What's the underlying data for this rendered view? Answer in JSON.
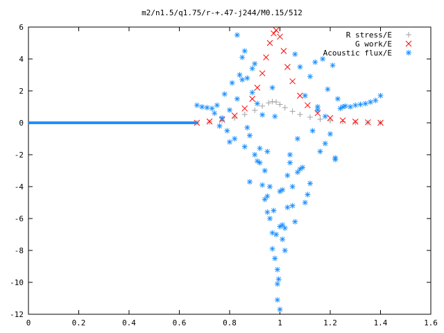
{
  "chart_data": {
    "type": "scatter",
    "title": "m2/n1.5/q1.75/r-+.47-j244/M0.15/512",
    "xlim": [
      0,
      1.6
    ],
    "ylim": [
      -12,
      6
    ],
    "x_ticks": [
      "0",
      "0.2",
      "0.4",
      "0.6",
      "0.8",
      "1",
      "1.2",
      "1.4",
      "1.6"
    ],
    "y_ticks": [
      "6",
      "4",
      "2",
      "0",
      "-2",
      "-4",
      "-6",
      "-8",
      "-10",
      "-12"
    ],
    "x_tick_values": [
      0,
      0.2,
      0.4,
      0.6,
      0.8,
      1.0,
      1.2,
      1.4,
      1.6
    ],
    "y_tick_values": [
      6,
      4,
      2,
      0,
      -2,
      -4,
      -6,
      -8,
      -10,
      -12
    ],
    "legend_position": "top-right",
    "series": [
      {
        "name": "R stress/E",
        "marker": "plus",
        "color": "#a0a0a0",
        "x": [
          0.67,
          0.72,
          0.77,
          0.82,
          0.86,
          0.9,
          0.93,
          0.955,
          0.97,
          0.985,
          1.0,
          1.02,
          1.05,
          1.08,
          1.12,
          1.16,
          1.2,
          1.25,
          1.3,
          1.35,
          1.4
        ],
        "y": [
          0.0,
          0.05,
          0.15,
          0.3,
          0.52,
          0.78,
          1.05,
          1.25,
          1.33,
          1.3,
          1.15,
          0.95,
          0.72,
          0.52,
          0.35,
          0.22,
          0.13,
          0.07,
          0.03,
          0.01,
          0.0
        ]
      },
      {
        "name": "G work/E",
        "marker": "cross",
        "color": "#ff0000",
        "x": [
          0.67,
          0.72,
          0.77,
          0.82,
          0.86,
          0.89,
          0.91,
          0.93,
          0.945,
          0.96,
          0.975,
          0.985,
          1.0,
          1.015,
          1.03,
          1.05,
          1.08,
          1.11,
          1.15,
          1.2,
          1.25,
          1.3,
          1.35,
          1.4
        ],
        "y": [
          0.0,
          0.08,
          0.2,
          0.45,
          0.9,
          1.5,
          2.2,
          3.1,
          4.1,
          5.0,
          5.6,
          5.8,
          5.4,
          4.5,
          3.5,
          2.6,
          1.7,
          1.1,
          0.6,
          0.3,
          0.15,
          0.07,
          0.03,
          0.0
        ]
      },
      {
        "name": "Acoustic flux/E",
        "marker": "star",
        "color": "#1e90ff",
        "line_x": [
          0.0,
          0.1,
          0.2,
          0.3,
          0.4,
          0.5,
          0.6,
          0.67
        ],
        "line_y": [
          0.0,
          0.0,
          0.0,
          0.0,
          0.0,
          0.0,
          0.0,
          0.0
        ],
        "x": [
          0.67,
          0.69,
          0.71,
          0.73,
          0.74,
          0.75,
          0.76,
          0.77,
          0.78,
          0.79,
          0.8,
          0.81,
          0.82,
          0.83,
          0.84,
          0.85,
          0.86,
          0.87,
          0.88,
          0.89,
          0.9,
          0.91,
          0.92,
          0.93,
          0.94,
          0.95,
          0.96,
          0.97,
          0.975,
          0.98,
          0.985,
          0.99,
          0.995,
          1.0,
          1.01,
          1.02,
          1.03,
          1.04,
          1.05,
          1.06,
          1.07,
          1.08,
          1.09,
          1.1,
          1.11,
          1.12,
          1.13,
          1.14,
          1.15,
          1.16,
          1.17,
          1.18,
          1.19,
          1.2,
          1.21,
          1.22,
          1.23,
          1.24,
          1.25,
          1.26,
          1.28,
          1.3,
          1.32,
          1.34,
          1.36,
          1.38,
          1.4,
          0.8,
          0.83,
          0.86,
          0.88,
          0.9,
          0.92,
          0.94,
          0.96,
          0.98,
          1.0,
          1.02,
          1.04,
          1.06,
          1.08,
          1.1,
          1.12,
          1.15,
          1.18,
          1.22,
          0.85,
          0.87,
          0.89,
          0.91,
          0.93,
          0.95,
          0.97,
          0.99,
          1.01,
          1.03,
          1.05,
          1.07,
          0.95,
          0.97,
          0.99,
          1.0,
          1.01
        ],
        "y": [
          1.1,
          1.0,
          0.95,
          0.9,
          0.6,
          1.1,
          -0.2,
          0.3,
          1.8,
          -0.5,
          0.8,
          2.5,
          -1.0,
          1.5,
          3.0,
          4.1,
          -1.5,
          2.8,
          -0.8,
          3.4,
          -2.0,
          1.2,
          -2.5,
          0.5,
          -3.0,
          -1.8,
          -4.0,
          2.2,
          -5.5,
          0.4,
          -7.0,
          -11.1,
          -9.8,
          -6.5,
          -4.2,
          -8.0,
          -3.3,
          -2.0,
          -5.2,
          4.3,
          -1.0,
          3.5,
          -2.8,
          1.7,
          -4.5,
          2.9,
          -0.5,
          3.8,
          1.0,
          -1.8,
          4.0,
          0.4,
          2.1,
          -0.7,
          3.6,
          -2.3,
          1.5,
          0.9,
          1.0,
          1.05,
          1.0,
          1.1,
          1.15,
          1.2,
          1.3,
          1.4,
          1.7,
          -1.2,
          5.5,
          4.5,
          -3.7,
          3.7,
          -1.6,
          -4.8,
          -6.0,
          -8.5,
          -11.7,
          -6.6,
          -2.5,
          -6.2,
          -2.9,
          -5.0,
          -3.8,
          0.8,
          -1.3,
          -2.2,
          2.7,
          -0.3,
          1.9,
          -2.4,
          -3.9,
          -5.6,
          -6.9,
          -10.1,
          -7.3,
          -5.3,
          -4.0,
          -3.1,
          -4.6,
          -7.9,
          -9.2,
          -4.3,
          -6.4
        ]
      }
    ]
  }
}
